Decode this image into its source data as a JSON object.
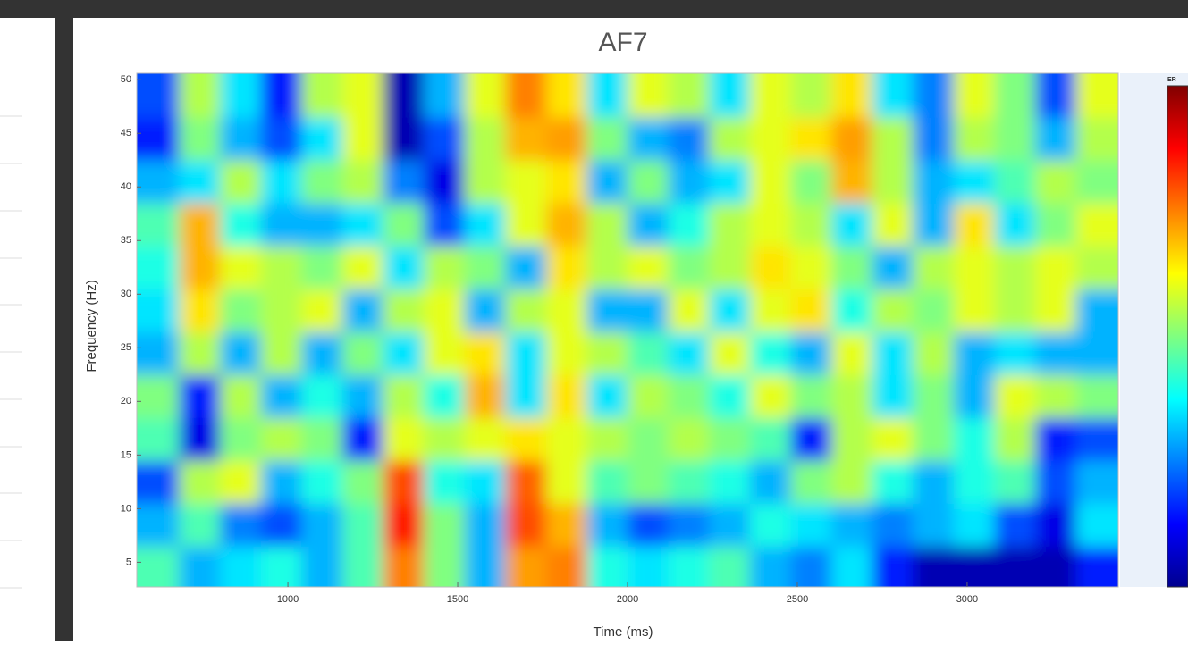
{
  "chart_data": {
    "type": "heatmap",
    "title": "AF7",
    "x_label": "Time (ms)",
    "y_label": "Frequency (Hz)",
    "colorbar_label": "ER",
    "x": [
      620,
      740,
      860,
      980,
      1100,
      1220,
      1340,
      1460,
      1580,
      1700,
      1820,
      1940,
      2060,
      2180,
      2300,
      2420,
      2540,
      2660,
      2780,
      2900,
      3020,
      3140,
      3260,
      3380
    ],
    "y": [
      4.5,
      8.5,
      12.5,
      16.5,
      20.5,
      24.5,
      28.5,
      32.5,
      36.5,
      40.5,
      44.5,
      48.5
    ],
    "values": [
      [
        0.45,
        0.3,
        0.35,
        0.4,
        0.3,
        0.45,
        0.75,
        0.5,
        0.3,
        0.72,
        0.75,
        0.4,
        0.35,
        0.4,
        0.45,
        0.3,
        0.25,
        0.35,
        0.15,
        0.05,
        0.05,
        0.05,
        0.05,
        0.15
      ],
      [
        0.3,
        0.45,
        0.25,
        0.2,
        0.3,
        0.45,
        0.85,
        0.5,
        0.3,
        0.8,
        0.7,
        0.3,
        0.2,
        0.25,
        0.3,
        0.4,
        0.35,
        0.3,
        0.25,
        0.3,
        0.35,
        0.2,
        0.1,
        0.35
      ],
      [
        0.2,
        0.55,
        0.6,
        0.3,
        0.4,
        0.5,
        0.8,
        0.4,
        0.35,
        0.78,
        0.6,
        0.45,
        0.5,
        0.45,
        0.4,
        0.3,
        0.5,
        0.55,
        0.4,
        0.3,
        0.4,
        0.45,
        0.2,
        0.3
      ],
      [
        0.45,
        0.1,
        0.5,
        0.55,
        0.5,
        0.15,
        0.6,
        0.55,
        0.6,
        0.65,
        0.6,
        0.55,
        0.5,
        0.55,
        0.5,
        0.45,
        0.15,
        0.55,
        0.6,
        0.5,
        0.4,
        0.55,
        0.15,
        0.2
      ],
      [
        0.5,
        0.15,
        0.55,
        0.3,
        0.4,
        0.3,
        0.55,
        0.4,
        0.7,
        0.35,
        0.65,
        0.35,
        0.55,
        0.5,
        0.4,
        0.6,
        0.5,
        0.55,
        0.35,
        0.5,
        0.3,
        0.6,
        0.55,
        0.5
      ],
      [
        0.3,
        0.55,
        0.3,
        0.55,
        0.3,
        0.5,
        0.35,
        0.6,
        0.65,
        0.35,
        0.6,
        0.55,
        0.45,
        0.35,
        0.6,
        0.4,
        0.3,
        0.6,
        0.35,
        0.55,
        0.3,
        0.35,
        0.3,
        0.3
      ],
      [
        0.35,
        0.65,
        0.5,
        0.55,
        0.6,
        0.3,
        0.55,
        0.6,
        0.3,
        0.55,
        0.6,
        0.3,
        0.3,
        0.6,
        0.35,
        0.6,
        0.65,
        0.4,
        0.55,
        0.5,
        0.6,
        0.55,
        0.6,
        0.3
      ],
      [
        0.4,
        0.7,
        0.6,
        0.55,
        0.5,
        0.6,
        0.35,
        0.55,
        0.5,
        0.3,
        0.65,
        0.55,
        0.6,
        0.5,
        0.55,
        0.65,
        0.6,
        0.5,
        0.3,
        0.55,
        0.6,
        0.55,
        0.6,
        0.55
      ],
      [
        0.45,
        0.7,
        0.4,
        0.3,
        0.3,
        0.35,
        0.5,
        0.2,
        0.35,
        0.6,
        0.7,
        0.55,
        0.3,
        0.4,
        0.55,
        0.6,
        0.55,
        0.35,
        0.6,
        0.3,
        0.65,
        0.35,
        0.5,
        0.6
      ],
      [
        0.3,
        0.35,
        0.55,
        0.35,
        0.5,
        0.55,
        0.25,
        0.1,
        0.55,
        0.6,
        0.65,
        0.3,
        0.5,
        0.3,
        0.35,
        0.6,
        0.5,
        0.7,
        0.55,
        0.3,
        0.35,
        0.45,
        0.55,
        0.5
      ],
      [
        0.15,
        0.5,
        0.3,
        0.2,
        0.35,
        0.6,
        0.05,
        0.2,
        0.55,
        0.7,
        0.72,
        0.5,
        0.3,
        0.25,
        0.55,
        0.6,
        0.65,
        0.72,
        0.55,
        0.25,
        0.55,
        0.5,
        0.3,
        0.55
      ],
      [
        0.2,
        0.55,
        0.35,
        0.15,
        0.55,
        0.6,
        0.05,
        0.3,
        0.6,
        0.75,
        0.65,
        0.35,
        0.6,
        0.55,
        0.35,
        0.6,
        0.55,
        0.65,
        0.35,
        0.25,
        0.6,
        0.5,
        0.2,
        0.6
      ]
    ],
    "xlim": [
      555,
      3445
    ],
    "ylim": [
      2.7,
      50.6
    ],
    "zlim": [
      0,
      1
    ],
    "xticks": [
      1000,
      1500,
      2000,
      2500,
      3000
    ],
    "yticks": [
      5,
      10,
      15,
      20,
      25,
      30,
      35,
      40,
      45,
      50
    ]
  }
}
